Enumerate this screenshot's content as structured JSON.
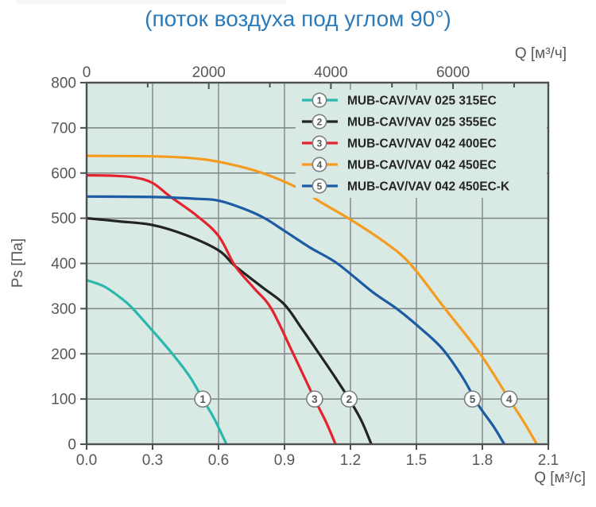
{
  "title": "(поток воздуха под углом 90°)",
  "colors": {
    "title": "#2b7bba",
    "page_bg": "#ffffff",
    "plot_bg": "#d9e9e4",
    "grid": "#7f8486",
    "axis_border": "#4c5052",
    "tick_text": "#54585a",
    "legend_text": "#242424",
    "marker_fill": "#ffffff",
    "marker_stroke": "#7a8082",
    "marker_text": "#55595b"
  },
  "chart_data": {
    "type": "line",
    "title": "(поток воздуха под углом 90°)",
    "grid": true,
    "legend_position": "top-right-inside",
    "x_axis_bottom": {
      "label": "Q [м³/с]",
      "min": 0,
      "max": 2.1,
      "ticks": [
        0,
        0.3,
        0.6,
        0.9,
        1.2,
        1.5,
        1.8,
        2.1
      ],
      "tick_labels": [
        "0.0",
        "0.3",
        "0.6",
        "0.9",
        "1.2",
        "1.5",
        "1.8",
        "2.1"
      ]
    },
    "x_axis_top": {
      "label": "Q [м³/ч]",
      "units_per_m3s": 3600,
      "ticks_major": [
        0,
        2000,
        4000,
        6000
      ],
      "tick_labels_major": [
        "0",
        "2000",
        "4000",
        "6000"
      ],
      "ticks_minor": [
        1000,
        3000,
        5000,
        7000
      ]
    },
    "y_axis": {
      "label": "Ps [Па]",
      "min": 0,
      "max": 800,
      "ticks": [
        0,
        100,
        200,
        300,
        400,
        500,
        600,
        700,
        800
      ],
      "tick_labels": [
        "0",
        "100",
        "200",
        "300",
        "400",
        "500",
        "600",
        "700",
        "800"
      ]
    },
    "marker_ps": 100,
    "series": [
      {
        "index": 1,
        "name": "MUB-CAV/VAV 025 315EC",
        "color": "#2bb8ac",
        "marker_q": 0.528,
        "points": [
          [
            0,
            363
          ],
          [
            0.08,
            349
          ],
          [
            0.16,
            322
          ],
          [
            0.21,
            300
          ],
          [
            0.3,
            251
          ],
          [
            0.39,
            200
          ],
          [
            0.47,
            149
          ],
          [
            0.528,
            100
          ],
          [
            0.58,
            57
          ],
          [
            0.636,
            0
          ]
        ]
      },
      {
        "index": 2,
        "name": "MUB-CAV/VAV 025 355EC",
        "color": "#232323",
        "marker_q": 1.194,
        "points": [
          [
            0,
            500
          ],
          [
            0.15,
            493
          ],
          [
            0.3,
            485
          ],
          [
            0.45,
            463
          ],
          [
            0.6,
            429
          ],
          [
            0.676,
            394
          ],
          [
            0.8,
            347
          ],
          [
            0.9,
            309
          ],
          [
            0.98,
            255
          ],
          [
            1.058,
            200
          ],
          [
            1.125,
            152
          ],
          [
            1.194,
            100
          ],
          [
            1.25,
            52
          ],
          [
            1.295,
            0
          ]
        ]
      },
      {
        "index": 3,
        "name": "MUB-CAV/VAV 042 400EC",
        "color": "#e32430",
        "marker_q": 1.037,
        "points": [
          [
            0,
            595
          ],
          [
            0.12,
            594
          ],
          [
            0.22,
            590
          ],
          [
            0.3,
            578
          ],
          [
            0.38,
            548
          ],
          [
            0.5,
            506
          ],
          [
            0.6,
            461
          ],
          [
            0.676,
            394
          ],
          [
            0.76,
            346
          ],
          [
            0.84,
            300
          ],
          [
            0.94,
            200
          ],
          [
            1.037,
            100
          ],
          [
            1.09,
            48
          ],
          [
            1.132,
            0
          ]
        ]
      },
      {
        "index": 4,
        "name": "MUB-CAV/VAV 042 450EC",
        "color": "#f59c1f",
        "marker_q": 1.922,
        "points": [
          [
            0,
            638
          ],
          [
            0.3,
            637
          ],
          [
            0.5,
            632
          ],
          [
            0.65,
            620
          ],
          [
            0.8,
            600
          ],
          [
            0.97,
            565
          ],
          [
            1.06,
            537
          ],
          [
            1.2,
            497
          ],
          [
            1.35,
            449
          ],
          [
            1.47,
            400
          ],
          [
            1.63,
            300
          ],
          [
            1.79,
            200
          ],
          [
            1.922,
            100
          ],
          [
            1.99,
            48
          ],
          [
            2.048,
            0
          ]
        ]
      },
      {
        "index": 5,
        "name": "MUB-CAV/VAV 042 450EC-K",
        "color": "#1d5ba4",
        "marker_q": 1.755,
        "points": [
          [
            0,
            548
          ],
          [
            0.3,
            547
          ],
          [
            0.5,
            543
          ],
          [
            0.6,
            539
          ],
          [
            0.72,
            520
          ],
          [
            0.81,
            500
          ],
          [
            0.9,
            472
          ],
          [
            1.02,
            434
          ],
          [
            1.14,
            400
          ],
          [
            1.3,
            337
          ],
          [
            1.41,
            300
          ],
          [
            1.52,
            256
          ],
          [
            1.62,
            210
          ],
          [
            1.71,
            148
          ],
          [
            1.78,
            88
          ],
          [
            1.85,
            40
          ],
          [
            1.9,
            0
          ]
        ]
      }
    ]
  }
}
